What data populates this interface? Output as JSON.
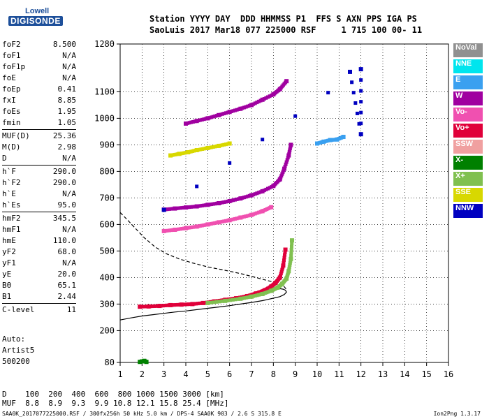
{
  "logo": {
    "line1": "Lowell",
    "line2": "DIGISONDE"
  },
  "header": {
    "line1": "Station YYYY DAY  DDD HHMMSS P1  FFS S AXN PPS IGA PS",
    "line2": "SaoLuis 2017 Mar18 077 225000 RSF     1 715 100 00- 11"
  },
  "params": [
    {
      "name": "foF2",
      "value": "8.500"
    },
    {
      "name": "foF1",
      "value": "N/A"
    },
    {
      "name": "foF1p",
      "value": "N/A"
    },
    {
      "name": "foE",
      "value": "N/A"
    },
    {
      "name": "foEp",
      "value": "0.41"
    },
    {
      "name": "fxI",
      "value": "8.85"
    },
    {
      "name": "foEs",
      "value": "1.95"
    },
    {
      "name": "fmin",
      "value": "1.05"
    },
    {
      "sep": true
    },
    {
      "name": "MUF(D)",
      "value": "25.36"
    },
    {
      "name": "M(D)",
      "value": "2.98"
    },
    {
      "name": "D",
      "value": "N/A"
    },
    {
      "sep": true
    },
    {
      "name": "h`F",
      "value": "290.0"
    },
    {
      "name": "h`F2",
      "value": "290.0"
    },
    {
      "name": "h`E",
      "value": "N/A"
    },
    {
      "name": "h`Es",
      "value": "95.0"
    },
    {
      "sep": true
    },
    {
      "name": "hmF2",
      "value": "345.5"
    },
    {
      "name": "hmF1",
      "value": "N/A"
    },
    {
      "name": "hmE",
      "value": "110.0"
    },
    {
      "name": "yF2",
      "value": "68.0"
    },
    {
      "name": "yF1",
      "value": "N/A"
    },
    {
      "name": "yE",
      "value": "20.0"
    },
    {
      "name": "B0",
      "value": "65.1"
    },
    {
      "name": "B1",
      "value": "2.44"
    },
    {
      "sep": true
    },
    {
      "name": "C-level",
      "value": "11"
    }
  ],
  "auto": {
    "line1": "Auto:",
    "line2": "Artist5",
    "line3": "500200"
  },
  "legend": [
    {
      "label": "NoVal",
      "color": "#909090"
    },
    {
      "label": "NNE",
      "color": "#00e5ee"
    },
    {
      "label": "E",
      "color": "#3aa0f0"
    },
    {
      "label": "W",
      "color": "#a000a0"
    },
    {
      "label": "Vo-",
      "color": "#f050b0"
    },
    {
      "label": "Vo+",
      "color": "#e0003a"
    },
    {
      "label": "SSW",
      "color": "#f0a0a0"
    },
    {
      "label": "X-",
      "color": "#008000"
    },
    {
      "label": "X+",
      "color": "#80c050"
    },
    {
      "label": "SSE",
      "color": "#d8d800"
    },
    {
      "label": "NNW",
      "color": "#0000c0"
    }
  ],
  "bottom": {
    "d_row": "D    100  200  400  600  800 1000 1500 3000 [km]",
    "muf_row": "MUF  8.8  8.9  9.3  9.9 10.8 12.1 15.8 25.4 [MHz]"
  },
  "footer": {
    "left": "SAA0K_2017077225000.RSF / 300fx256h 50 kHz 5.0 km / DPS-4 SAA0K 903 / 2.6 S 315.8 E",
    "right": "Ion2Png 1.3.17"
  },
  "chart_data": {
    "type": "scatter",
    "xlabel": "",
    "ylabel": "",
    "xlim": [
      1,
      16
    ],
    "ylim": [
      80,
      1280
    ],
    "x_ticks": [
      1,
      2,
      3,
      4,
      5,
      6,
      7,
      8,
      9,
      10,
      11,
      12,
      13,
      14,
      15,
      16
    ],
    "y_ticks": [
      80,
      200,
      300,
      400,
      500,
      600,
      700,
      800,
      900,
      1000,
      1100,
      1280
    ],
    "grid": true,
    "series": [
      {
        "name": "Vo+",
        "color": "#e0003a",
        "x": [
          1.9,
          2.3,
          2.8,
          3.3,
          3.8,
          4.3,
          4.8,
          5.3,
          5.8,
          6.3,
          6.8,
          7.2,
          7.6,
          7.9,
          8.1,
          8.3,
          8.45,
          8.55
        ],
        "y": [
          290,
          291,
          293,
          296,
          298,
          300,
          304,
          310,
          316,
          322,
          330,
          340,
          352,
          366,
          380,
          400,
          445,
          505
        ]
      },
      {
        "name": "X+",
        "color": "#80c050",
        "x": [
          5.0,
          5.8,
          6.5,
          7.0,
          7.5,
          7.9,
          8.2,
          8.4,
          8.6,
          8.7,
          8.8,
          8.85
        ],
        "y": [
          304,
          312,
          320,
          328,
          338,
          350,
          362,
          376,
          396,
          424,
          470,
          540
        ]
      },
      {
        "name": "X-",
        "color": "#008000",
        "x": [
          1.9,
          2.0,
          2.1,
          2.2
        ],
        "y": [
          82,
          84,
          86,
          82
        ]
      },
      {
        "name": "W",
        "color": "#a000a0",
        "x": [
          3.0,
          3.5,
          4.0,
          4.5,
          5.0,
          5.5,
          6.0,
          6.5,
          7.0,
          7.5,
          8.0,
          8.3,
          8.5,
          8.7,
          8.8
        ],
        "y": [
          656,
          660,
          664,
          668,
          674,
          680,
          688,
          698,
          710,
          725,
          745,
          770,
          810,
          860,
          900
        ]
      },
      {
        "name": "W",
        "color": "#a000a0",
        "x": [
          4.0,
          4.5,
          5.0,
          5.5,
          6.0,
          6.5,
          7.0,
          7.5,
          8.0,
          8.3,
          8.6
        ],
        "y": [
          980,
          990,
          1000,
          1012,
          1024,
          1036,
          1050,
          1070,
          1090,
          1110,
          1140
        ]
      },
      {
        "name": "Vo-",
        "color": "#f050b0",
        "x": [
          3.0,
          3.5,
          4.0,
          4.5,
          5.0,
          5.5,
          6.0,
          6.5,
          7.0,
          7.5,
          7.9
        ],
        "y": [
          575,
          580,
          586,
          592,
          600,
          608,
          616,
          626,
          636,
          650,
          665
        ]
      },
      {
        "name": "SSE",
        "color": "#d8d800",
        "x": [
          3.3,
          3.7,
          4.1,
          4.5,
          5.0,
          5.5,
          6.0
        ],
        "y": [
          860,
          866,
          872,
          880,
          888,
          896,
          905
        ]
      },
      {
        "name": "E",
        "color": "#3aa0f0",
        "x": [
          10.0,
          10.3,
          10.6,
          10.9,
          11.2
        ],
        "y": [
          905,
          912,
          918,
          920,
          930
        ]
      },
      {
        "name": "NNW",
        "color": "#0000c0",
        "x": [
          3.0,
          12.0,
          12.0,
          11.5
        ],
        "y": [
          655,
          1185,
          940,
          1175
        ]
      }
    ],
    "profile_curves": [
      {
        "style": "solid",
        "x": [
          1.0,
          1.5,
          2.0,
          2.5,
          3.0,
          3.5,
          4.0,
          4.5,
          5.0,
          5.5,
          6.0,
          6.5,
          7.0,
          7.5,
          8.0,
          8.3,
          8.5,
          8.6,
          8.55,
          8.45,
          8.3
        ],
        "y": [
          240,
          248,
          255,
          260,
          265,
          270,
          274,
          279,
          284,
          289,
          294,
          300,
          306,
          313,
          322,
          328,
          336,
          345,
          352,
          356,
          358
        ]
      },
      {
        "style": "dashed",
        "x": [
          1.0,
          1.3,
          1.7,
          2.1,
          2.6,
          3.1,
          3.7,
          4.3,
          5.0,
          5.8,
          6.6,
          7.3,
          7.9,
          8.3,
          8.5,
          8.6
        ],
        "y": [
          645,
          620,
          585,
          550,
          515,
          490,
          470,
          455,
          440,
          427,
          413,
          398,
          385,
          375,
          365,
          355
        ]
      }
    ]
  }
}
